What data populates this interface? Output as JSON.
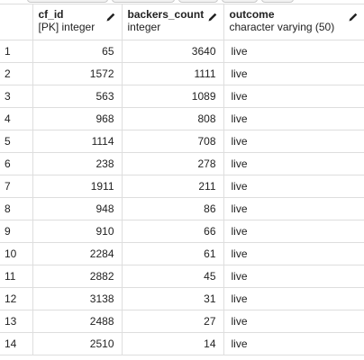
{
  "columns": [
    {
      "name": "",
      "type": ""
    },
    {
      "name": "cf_id",
      "type": "[PK] integer"
    },
    {
      "name": "backers_count",
      "type": "integer"
    },
    {
      "name": "outcome",
      "type": "character varying (50)"
    }
  ],
  "rows": [
    {
      "n": "1",
      "cf_id": "65",
      "backers_count": "3640",
      "outcome": "live"
    },
    {
      "n": "2",
      "cf_id": "1572",
      "backers_count": "1111",
      "outcome": "live"
    },
    {
      "n": "3",
      "cf_id": "563",
      "backers_count": "1089",
      "outcome": "live"
    },
    {
      "n": "4",
      "cf_id": "968",
      "backers_count": "808",
      "outcome": "live"
    },
    {
      "n": "5",
      "cf_id": "1114",
      "backers_count": "708",
      "outcome": "live"
    },
    {
      "n": "6",
      "cf_id": "238",
      "backers_count": "278",
      "outcome": "live"
    },
    {
      "n": "7",
      "cf_id": "1911",
      "backers_count": "211",
      "outcome": "live"
    },
    {
      "n": "8",
      "cf_id": "948",
      "backers_count": "86",
      "outcome": "live"
    },
    {
      "n": "9",
      "cf_id": "910",
      "backers_count": "66",
      "outcome": "live"
    },
    {
      "n": "10",
      "cf_id": "2284",
      "backers_count": "61",
      "outcome": "live"
    },
    {
      "n": "11",
      "cf_id": "2882",
      "backers_count": "45",
      "outcome": "live"
    },
    {
      "n": "12",
      "cf_id": "3138",
      "backers_count": "31",
      "outcome": "live"
    },
    {
      "n": "13",
      "cf_id": "2488",
      "backers_count": "27",
      "outcome": "live"
    },
    {
      "n": "14",
      "cf_id": "2510",
      "backers_count": "14",
      "outcome": "live"
    }
  ],
  "icons": {
    "edit": "pencil-icon"
  },
  "colors": {
    "grid_border": "#dedede",
    "text": "#222222",
    "background": "#ffffff"
  }
}
